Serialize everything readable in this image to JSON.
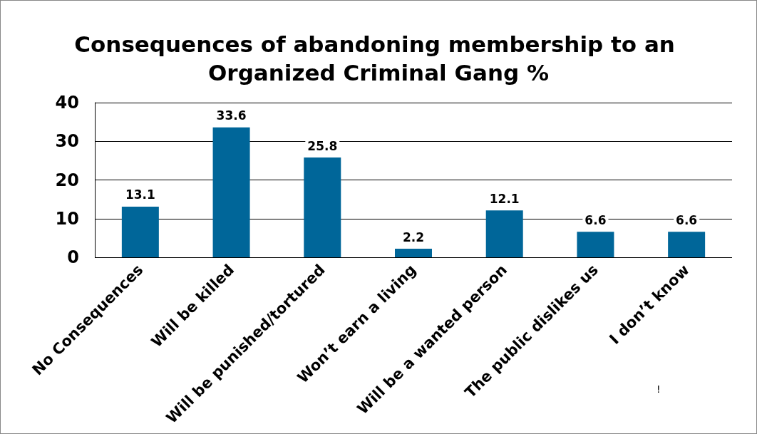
{
  "chart_data": {
    "type": "bar",
    "title": "Consequences of abandoning membership to an Organized Criminal Gang %",
    "categories": [
      "No Consequences",
      "Will be killed",
      "Will be punished/tortured",
      "Won’t earn a living",
      "Will be a wanted person",
      "The public dislikes us",
      "I don’t know"
    ],
    "values": [
      13.1,
      33.6,
      25.8,
      2.2,
      12.1,
      6.6,
      6.6
    ],
    "color": "#006699",
    "ylim": [
      0,
      40
    ],
    "yticks": [
      0,
      10,
      20,
      30,
      40
    ],
    "grid": "y",
    "data_labels": true,
    "annotations": [
      "!"
    ]
  }
}
